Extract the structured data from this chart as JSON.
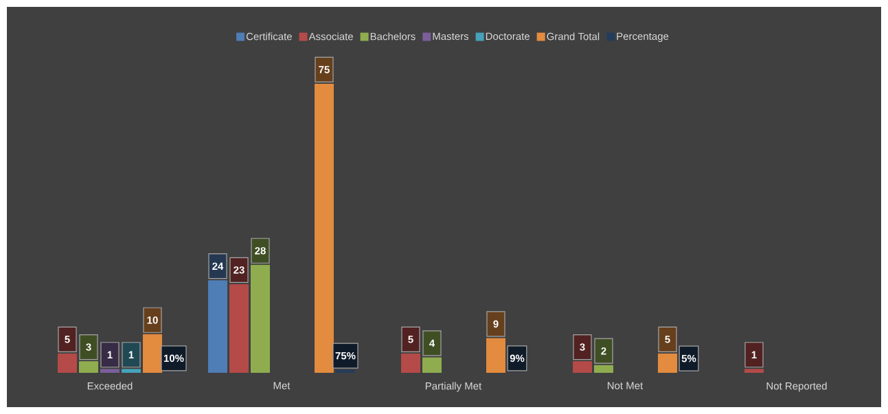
{
  "chart_data": {
    "type": "bar",
    "categories": [
      "Exceeded",
      "Met",
      "Partially Met",
      "Not Met",
      "Not Reported"
    ],
    "series": [
      {
        "name": "Certificate",
        "color": "#4f7db5",
        "values": [
          null,
          24,
          null,
          null,
          null
        ],
        "value_labels": [
          null,
          "24",
          null,
          null,
          null
        ]
      },
      {
        "name": "Associate",
        "color": "#b44b49",
        "values": [
          5,
          23,
          5,
          3,
          1
        ],
        "value_labels": [
          "5",
          "23",
          "5",
          "3",
          "1"
        ]
      },
      {
        "name": "Bachelors",
        "color": "#8fad4f",
        "values": [
          3,
          28,
          4,
          2,
          null
        ],
        "value_labels": [
          "3",
          "28",
          "4",
          "2",
          null
        ]
      },
      {
        "name": "Masters",
        "color": "#7a5f9a",
        "values": [
          1,
          null,
          null,
          null,
          null
        ],
        "value_labels": [
          "1",
          null,
          null,
          null,
          null
        ]
      },
      {
        "name": "Doctorate",
        "color": "#46a2ba",
        "values": [
          1,
          null,
          null,
          null,
          null
        ],
        "value_labels": [
          "1",
          null,
          null,
          null,
          null
        ]
      },
      {
        "name": "Grand Total",
        "color": "#e38b3f",
        "values": [
          10,
          75,
          9,
          5,
          null
        ],
        "value_labels": [
          "10",
          "75",
          "9",
          "5",
          null
        ]
      },
      {
        "name": "Percentage",
        "color": "#243c5c",
        "values": [
          0.1,
          0.75,
          0.09,
          0.05,
          null
        ],
        "value_labels": [
          "10%",
          "75%",
          "9%",
          "5%",
          null
        ]
      }
    ],
    "legend": "top"
  }
}
